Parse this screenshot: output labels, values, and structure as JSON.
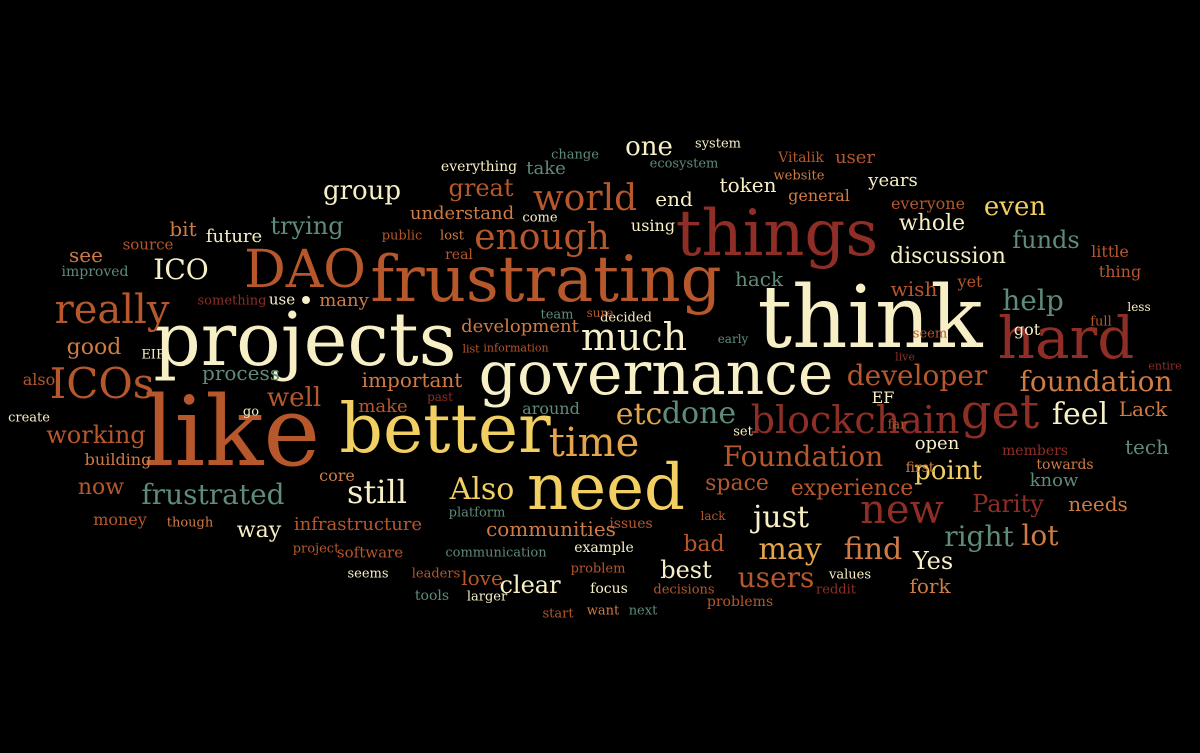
{
  "palette": {
    "background": "#000000",
    "cream": "#F7EFC6",
    "yellow": "#F2CF63",
    "gold": "#E3A44B",
    "orange": "#CF7B45",
    "rust": "#B6572C",
    "brick": "#8F2E27",
    "tan": "#C9A46B",
    "green": "#5E8C78",
    "teal": "#4D7562"
  },
  "words": [
    {
      "text": "think",
      "color": "cream"
    },
    {
      "text": "like",
      "color": "rust"
    },
    {
      "text": "governance",
      "color": "cream"
    },
    {
      "text": "projects",
      "color": "cream"
    },
    {
      "text": "better",
      "color": "yellow"
    },
    {
      "text": "frustrating",
      "color": "rust"
    },
    {
      "text": "things",
      "color": "brick"
    },
    {
      "text": "need",
      "color": "yellow"
    },
    {
      "text": "hard",
      "color": "brick"
    },
    {
      "text": "DAO",
      "color": "rust"
    },
    {
      "text": "get",
      "color": "brick"
    },
    {
      "text": "blockchain",
      "color": "brick"
    },
    {
      "text": "time",
      "color": "gold"
    },
    {
      "text": "ICOs",
      "color": "rust"
    },
    {
      "text": "much",
      "color": "cream"
    },
    {
      "text": "enough",
      "color": "rust"
    },
    {
      "text": "world",
      "color": "rust"
    },
    {
      "text": "still",
      "color": "cream"
    },
    {
      "text": "Also",
      "color": "yellow"
    },
    {
      "text": "new",
      "color": "brick"
    },
    {
      "text": "really",
      "color": "rust"
    },
    {
      "text": "etc",
      "color": "gold"
    },
    {
      "text": "done",
      "color": "green"
    },
    {
      "text": "feel",
      "color": "cream"
    },
    {
      "text": "foundation",
      "color": "orange"
    },
    {
      "text": "developer",
      "color": "rust"
    },
    {
      "text": "Foundation",
      "color": "rust"
    },
    {
      "text": "frustrated",
      "color": "green"
    },
    {
      "text": "ICO",
      "color": "cream"
    },
    {
      "text": "help",
      "color": "green"
    },
    {
      "text": "just",
      "color": "cream"
    },
    {
      "text": "may",
      "color": "gold"
    },
    {
      "text": "find",
      "color": "orange"
    },
    {
      "text": "users",
      "color": "rust"
    },
    {
      "text": "lot",
      "color": "orange"
    },
    {
      "text": "right",
      "color": "green"
    },
    {
      "text": "point",
      "color": "yellow"
    },
    {
      "text": "working",
      "color": "rust"
    },
    {
      "text": "well",
      "color": "rust"
    },
    {
      "text": "even",
      "color": "yellow"
    },
    {
      "text": "one",
      "color": "cream"
    },
    {
      "text": "funds",
      "color": "green"
    },
    {
      "text": "group",
      "color": "cream"
    },
    {
      "text": "trying",
      "color": "green"
    },
    {
      "text": "great",
      "color": "rust"
    },
    {
      "text": "best",
      "color": "cream"
    },
    {
      "text": "bad",
      "color": "rust"
    },
    {
      "text": "clear",
      "color": "cream"
    },
    {
      "text": "Yes",
      "color": "cream"
    },
    {
      "text": "Parity",
      "color": "brick"
    },
    {
      "text": "experience",
      "color": "rust"
    },
    {
      "text": "space",
      "color": "rust"
    },
    {
      "text": "important",
      "color": "orange"
    },
    {
      "text": "process",
      "color": "green"
    },
    {
      "text": "good",
      "color": "orange"
    },
    {
      "text": "now",
      "color": "rust"
    },
    {
      "text": "way",
      "color": "cream"
    },
    {
      "text": "discussion",
      "color": "cream"
    },
    {
      "text": "whole",
      "color": "cream"
    },
    {
      "text": "end",
      "color": "cream"
    },
    {
      "text": "token",
      "color": "cream"
    },
    {
      "text": "Lack",
      "color": "orange"
    },
    {
      "text": "tech",
      "color": "green"
    },
    {
      "text": "fork",
      "color": "orange"
    },
    {
      "text": "love",
      "color": "rust"
    },
    {
      "text": "hack",
      "color": "green"
    },
    {
      "text": "wish",
      "color": "rust"
    },
    {
      "text": "open",
      "color": "cream"
    },
    {
      "text": "needs",
      "color": "orange"
    },
    {
      "text": "know",
      "color": "green"
    },
    {
      "text": "communities",
      "color": "orange"
    },
    {
      "text": "make",
      "color": "rust"
    },
    {
      "text": "development",
      "color": "orange"
    },
    {
      "text": "understand",
      "color": "orange"
    },
    {
      "text": "infrastructure",
      "color": "rust"
    },
    {
      "text": "take",
      "color": "green"
    },
    {
      "text": "user",
      "color": "rust"
    },
    {
      "text": "see",
      "color": "orange"
    },
    {
      "text": "bit",
      "color": "orange"
    },
    {
      "text": "years",
      "color": "cream"
    },
    {
      "text": "future",
      "color": "cream"
    },
    {
      "text": "many",
      "color": "orange"
    },
    {
      "text": "little",
      "color": "rust"
    },
    {
      "text": "got",
      "color": "cream"
    },
    {
      "text": "thing",
      "color": "rust"
    },
    {
      "text": "yet",
      "color": "rust"
    },
    {
      "text": "building",
      "color": "orange"
    },
    {
      "text": "using",
      "color": "cream"
    },
    {
      "text": "everyone",
      "color": "rust"
    },
    {
      "text": "general",
      "color": "orange"
    },
    {
      "text": "Vitalik",
      "color": "rust"
    },
    {
      "text": "around",
      "color": "green"
    },
    {
      "text": "also",
      "color": "rust"
    },
    {
      "text": "EF",
      "color": "cream"
    },
    {
      "text": "money",
      "color": "rust"
    },
    {
      "text": "core",
      "color": "orange"
    },
    {
      "text": "software",
      "color": "rust"
    },
    {
      "text": "example",
      "color": "cream"
    },
    {
      "text": "issues",
      "color": "rust"
    },
    {
      "text": "source",
      "color": "rust"
    },
    {
      "text": "everything",
      "color": "cream"
    },
    {
      "text": "change",
      "color": "green"
    },
    {
      "text": "system",
      "color": "cream"
    },
    {
      "text": "ecosystem",
      "color": "green"
    },
    {
      "text": "website",
      "color": "orange"
    },
    {
      "text": "members",
      "color": "brick"
    },
    {
      "text": "towards",
      "color": "orange"
    },
    {
      "text": "first",
      "color": "orange"
    },
    {
      "text": "use",
      "color": "cream"
    },
    {
      "text": "real",
      "color": "rust"
    },
    {
      "text": "public",
      "color": "rust"
    },
    {
      "text": "lost",
      "color": "orange"
    },
    {
      "text": "come",
      "color": "cream"
    },
    {
      "text": "decided",
      "color": "cream"
    },
    {
      "text": "sure",
      "color": "rust"
    },
    {
      "text": "team",
      "color": "green"
    },
    {
      "text": "focus",
      "color": "cream"
    },
    {
      "text": "want",
      "color": "orange"
    },
    {
      "text": "next",
      "color": "green"
    },
    {
      "text": "start",
      "color": "rust"
    },
    {
      "text": "problems",
      "color": "rust"
    },
    {
      "text": "decisions",
      "color": "rust"
    },
    {
      "text": "reddit",
      "color": "brick"
    },
    {
      "text": "values",
      "color": "cream"
    },
    {
      "text": "seems",
      "color": "cream"
    },
    {
      "text": "leaders",
      "color": "rust"
    },
    {
      "text": "tools",
      "color": "green"
    },
    {
      "text": "larger",
      "color": "cream"
    },
    {
      "text": "problem",
      "color": "rust"
    },
    {
      "text": "communication",
      "color": "green"
    },
    {
      "text": "project",
      "color": "rust"
    },
    {
      "text": "though",
      "color": "orange"
    },
    {
      "text": "platform",
      "color": "green"
    },
    {
      "text": "lack",
      "color": "rust"
    },
    {
      "text": "improved",
      "color": "green"
    },
    {
      "text": "something",
      "color": "brick"
    },
    {
      "text": "EIP",
      "color": "cream"
    },
    {
      "text": "list",
      "color": "rust"
    },
    {
      "text": "information",
      "color": "rust"
    },
    {
      "text": "early",
      "color": "green"
    },
    {
      "text": "seem",
      "color": "rust"
    },
    {
      "text": "live",
      "color": "brick"
    },
    {
      "text": "go",
      "color": "cream"
    },
    {
      "text": "past",
      "color": "brick"
    },
    {
      "text": "set",
      "color": "cream"
    },
    {
      "text": "far",
      "color": "rust"
    },
    {
      "text": "create",
      "color": "cream"
    },
    {
      "text": "full",
      "color": "rust"
    },
    {
      "text": "less",
      "color": "cream"
    },
    {
      "text": "entire",
      "color": "brick"
    }
  ]
}
